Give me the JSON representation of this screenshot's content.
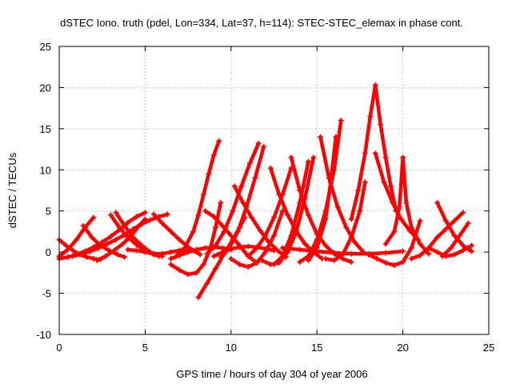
{
  "chart_data": {
    "type": "scatter",
    "title": "dSTEC Iono. truth (pdel, Lon=334, Lat=37, h=114): STEC-STEC_elemax in phase cont.",
    "xlabel": "GPS time / hours of day 304 of year 2006",
    "ylabel": "dSTEC  / TECUs",
    "xlim": [
      0,
      25
    ],
    "ylim": [
      -10,
      25
    ],
    "xticks": [
      0,
      5,
      10,
      15,
      20,
      25
    ],
    "yticks": [
      -10,
      -5,
      0,
      5,
      10,
      15,
      20,
      25
    ],
    "grid": true,
    "marker": "+",
    "series_color": "#ff0000",
    "tracks": [
      {
        "x": [
          0.0,
          0.5,
          1.0,
          1.5,
          2.0,
          2.5,
          3.0,
          3.5,
          4.0,
          4.5,
          5.0
        ],
        "y": [
          -0.8,
          -0.6,
          -0.3,
          0.1,
          0.6,
          1.2,
          1.9,
          2.7,
          3.6,
          4.3,
          4.8
        ]
      },
      {
        "x": [
          0.0,
          0.4,
          0.8,
          1.2,
          1.6,
          2.0,
          2.4
        ],
        "y": [
          1.5,
          0.8,
          0.2,
          -0.3,
          -0.6,
          -0.8,
          -0.9
        ]
      },
      {
        "x": [
          0.0,
          0.5,
          1.0,
          1.5,
          2.0
        ],
        "y": [
          -0.5,
          0.3,
          1.5,
          3.0,
          4.2
        ]
      },
      {
        "x": [
          0.8,
          1.3,
          1.8,
          2.3,
          2.8,
          3.3,
          3.8,
          4.3,
          4.8,
          5.3,
          5.8,
          6.3
        ],
        "y": [
          -0.5,
          -0.2,
          0.1,
          0.5,
          1.0,
          1.5,
          2.1,
          2.8,
          3.4,
          3.9,
          4.3,
          4.6
        ]
      },
      {
        "x": [
          1.4,
          1.9,
          2.4,
          2.9,
          3.4,
          3.8
        ],
        "y": [
          3.2,
          1.8,
          0.8,
          0.2,
          -0.3,
          -0.6
        ]
      },
      {
        "x": [
          2.2,
          2.7,
          3.2,
          3.7,
          4.2,
          4.6,
          5.0
        ],
        "y": [
          -1.0,
          -0.5,
          0.2,
          1.0,
          2.0,
          3.1,
          4.0
        ]
      },
      {
        "x": [
          3.0,
          3.5,
          4.0,
          4.5,
          5.0,
          5.5,
          6.0
        ],
        "y": [
          4.5,
          3.0,
          1.8,
          0.9,
          0.2,
          -0.3,
          -0.5
        ]
      },
      {
        "x": [
          3.3,
          3.8,
          4.3,
          4.8,
          5.3,
          5.8
        ],
        "y": [
          4.8,
          3.2,
          1.8,
          0.8,
          0.0,
          -0.5
        ]
      },
      {
        "x": [
          4.0,
          4.5,
          5.0,
          5.5,
          6.0,
          6.5,
          7.0,
          7.5,
          8.0
        ],
        "y": [
          0.3,
          0.2,
          0.0,
          -0.2,
          -0.2,
          0.0,
          0.2,
          0.3,
          0.2
        ]
      },
      {
        "x": [
          5.5,
          6.0,
          6.5,
          7.0,
          7.4,
          7.8,
          8.2
        ],
        "y": [
          4.6,
          3.5,
          2.5,
          1.5,
          0.8,
          0.2,
          -0.3
        ]
      },
      {
        "x": [
          6.5,
          7.0,
          7.5,
          8.0,
          8.5,
          9.0,
          9.5,
          10.0
        ],
        "y": [
          -0.8,
          -0.4,
          0.0,
          0.3,
          0.5,
          0.6,
          0.5,
          0.3
        ]
      },
      {
        "x": [
          6.5,
          7.0,
          7.5,
          8.0,
          8.4,
          8.8,
          9.1,
          9.4
        ],
        "y": [
          -1.5,
          -2.2,
          -2.7,
          -2.5,
          -1.5,
          0.5,
          3.0,
          6.0
        ]
      },
      {
        "x": [
          6.8,
          7.3,
          7.8,
          8.1,
          8.4,
          8.7,
          9.0,
          9.3
        ],
        "y": [
          -0.5,
          0.5,
          2.5,
          4.5,
          7.0,
          9.5,
          11.8,
          13.5
        ]
      },
      {
        "x": [
          8.1,
          8.6,
          9.1,
          9.6,
          10.1,
          10.5,
          10.8
        ],
        "y": [
          -5.5,
          -3.8,
          -2.0,
          -0.2,
          1.5,
          3.0,
          4.2
        ]
      },
      {
        "x": [
          9.0,
          9.5,
          10.0,
          10.5,
          11.0,
          11.5,
          12.0,
          12.5
        ],
        "y": [
          -0.5,
          0.0,
          0.4,
          0.6,
          0.7,
          0.6,
          0.4,
          0.2
        ]
      },
      {
        "x": [
          8.6,
          9.1,
          9.6,
          10.1,
          10.6,
          11.1,
          11.6
        ],
        "y": [
          -0.2,
          0.8,
          2.5,
          5.0,
          8.0,
          10.8,
          13.2
        ]
      },
      {
        "x": [
          9.4,
          9.9,
          10.4,
          10.9,
          11.4,
          11.9
        ],
        "y": [
          -0.6,
          0.5,
          2.5,
          5.5,
          9.0,
          12.8
        ]
      },
      {
        "x": [
          8.5,
          9.0,
          9.5,
          10.0,
          10.5,
          11.0,
          11.5
        ],
        "y": [
          5.0,
          4.3,
          3.2,
          2.0,
          0.8,
          -0.5,
          -1.3
        ]
      },
      {
        "x": [
          10.0,
          10.5,
          11.0,
          11.5,
          12.0,
          12.5,
          13.0
        ],
        "y": [
          -0.8,
          -1.5,
          -1.8,
          -1.3,
          0.0,
          2.0,
          5.0
        ]
      },
      {
        "x": [
          10.2,
          10.7,
          11.2,
          11.7,
          12.2,
          12.7,
          13.2
        ],
        "y": [
          8.0,
          6.0,
          4.2,
          2.6,
          1.2,
          0.2,
          -0.6
        ]
      },
      {
        "x": [
          11.0,
          11.5,
          12.0,
          12.5,
          13.0,
          13.5
        ],
        "y": [
          -0.5,
          0.5,
          2.0,
          4.2,
          7.0,
          10.2
        ]
      },
      {
        "x": [
          12.3,
          12.8,
          13.3,
          13.8,
          14.3,
          14.8,
          15.3
        ],
        "y": [
          10.2,
          7.0,
          4.5,
          2.5,
          1.0,
          0.0,
          -0.8
        ]
      },
      {
        "x": [
          11.8,
          12.3,
          12.8,
          13.3,
          13.8,
          14.3,
          14.8
        ],
        "y": [
          -1.0,
          -1.5,
          -1.3,
          0.0,
          2.5,
          6.5,
          11.5
        ]
      },
      {
        "x": [
          12.5,
          13.0,
          13.5,
          14.0,
          14.5
        ],
        "y": [
          -1.5,
          -0.5,
          2.0,
          6.0,
          11.0
        ]
      },
      {
        "x": [
          13.5,
          14.0,
          14.5,
          15.0,
          15.5,
          16.0,
          16.5,
          17.0
        ],
        "y": [
          11.5,
          7.5,
          4.5,
          2.2,
          0.8,
          -0.2,
          -0.8,
          -1.2
        ]
      },
      {
        "x": [
          14.0,
          14.5,
          15.0,
          15.5,
          16.0,
          16.4
        ],
        "y": [
          -1.2,
          -0.5,
          1.5,
          5.0,
          10.0,
          16.0
        ]
      },
      {
        "x": [
          14.5,
          15.0,
          15.5,
          15.8,
          16.1
        ],
        "y": [
          -1.0,
          0.5,
          4.0,
          8.5,
          14.0
        ]
      },
      {
        "x": [
          15.2,
          15.7,
          16.2,
          16.7,
          17.2,
          17.7
        ],
        "y": [
          14.0,
          9.0,
          5.5,
          3.0,
          1.2,
          0.0
        ]
      },
      {
        "x": [
          13.0,
          14.0,
          15.0,
          16.0,
          17.0,
          18.0,
          19.0,
          20.0
        ],
        "y": [
          0.5,
          0.3,
          0.1,
          -0.1,
          -0.2,
          -0.2,
          -0.1,
          0.1
        ]
      },
      {
        "x": [
          15.5,
          16.0,
          16.5,
          17.0,
          17.5,
          17.8
        ],
        "y": [
          -0.8,
          -1.0,
          -0.3,
          1.8,
          5.0,
          8.5
        ]
      },
      {
        "x": [
          17.0,
          17.4,
          17.8,
          18.1,
          18.4,
          18.7,
          19.0,
          19.3,
          19.6
        ],
        "y": [
          4.0,
          7.5,
          12.0,
          16.5,
          20.3,
          15.5,
          11.5,
          8.0,
          5.0
        ]
      },
      {
        "x": [
          18.4,
          18.9,
          19.4,
          19.9,
          20.4,
          20.9
        ],
        "y": [
          12.0,
          8.5,
          6.0,
          4.0,
          2.6,
          1.5
        ]
      },
      {
        "x": [
          18.0,
          18.5,
          19.0,
          19.5,
          20.0,
          20.5,
          21.0
        ],
        "y": [
          -0.3,
          -0.8,
          -1.3,
          -1.6,
          -1.2,
          0.5,
          3.8
        ]
      },
      {
        "x": [
          19.0,
          19.5,
          19.8,
          20.0,
          20.2,
          20.5,
          21.0,
          21.5
        ],
        "y": [
          1.0,
          2.5,
          5.5,
          11.5,
          6.0,
          3.0,
          1.0,
          -0.2
        ]
      },
      {
        "x": [
          20.5,
          21.0,
          21.5,
          22.0,
          22.5,
          23.0,
          23.5
        ],
        "y": [
          -0.8,
          -0.4,
          0.5,
          1.8,
          2.8,
          3.8,
          4.8
        ]
      },
      {
        "x": [
          22.0,
          22.5,
          23.0,
          23.5,
          24.0
        ],
        "y": [
          6.0,
          3.8,
          2.0,
          0.8,
          0.1
        ]
      },
      {
        "x": [
          21.5,
          22.0,
          22.5,
          23.0,
          23.5,
          24.0
        ],
        "y": [
          0.5,
          0.0,
          -0.5,
          -0.3,
          0.2,
          0.8
        ]
      },
      {
        "x": [
          22.3,
          22.8,
          23.3,
          23.8
        ],
        "y": [
          -0.5,
          0.5,
          2.0,
          3.5
        ]
      }
    ]
  }
}
